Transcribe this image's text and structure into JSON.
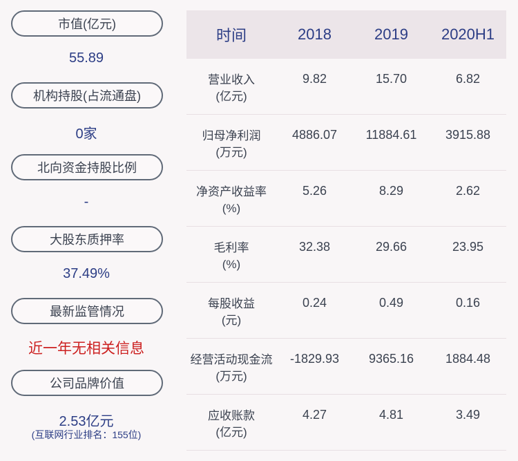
{
  "left": {
    "items": [
      {
        "label": "市值(亿元)",
        "value": "55.89"
      },
      {
        "label": "机构持股(占流通盘)",
        "value": "0家"
      },
      {
        "label": "北向资金持股比例",
        "value": "-"
      },
      {
        "label": "大股东质押率",
        "value": "37.49%"
      },
      {
        "label": "最新监管情况",
        "value": "近一年无相关信息"
      },
      {
        "label": "公司品牌价值",
        "value": "2.53亿元",
        "note": "(互联网行业排名：155位)"
      }
    ]
  },
  "table": {
    "headers": [
      "时间",
      "2018",
      "2019",
      "2020H1"
    ],
    "rows": [
      {
        "label1": "营业收入",
        "label2": "(亿元)",
        "values": [
          "9.82",
          "15.70",
          "6.82"
        ]
      },
      {
        "label1": "归母净利润",
        "label2": "(万元)",
        "values": [
          "4886.07",
          "11884.61",
          "3915.88"
        ]
      },
      {
        "label1": "净资产收益率",
        "label2": "(%)",
        "values": [
          "5.26",
          "8.29",
          "2.62"
        ]
      },
      {
        "label1": "毛利率",
        "label2": "(%)",
        "values": [
          "32.38",
          "29.66",
          "23.95"
        ]
      },
      {
        "label1": "每股收益",
        "label2": "(元)",
        "values": [
          "0.24",
          "0.49",
          "0.16"
        ]
      },
      {
        "label1": "经营活动现金流",
        "label2": "(万元)",
        "values": [
          "-1829.93",
          "9365.16",
          "1884.48"
        ]
      },
      {
        "label1": "应收账款",
        "label2": "(亿元)",
        "values": [
          "4.27",
          "4.81",
          "3.49"
        ]
      }
    ]
  },
  "colors": {
    "value_blue": "#2c3d85",
    "alert_red": "#cc2020",
    "header_bg": "#ece5e9"
  }
}
